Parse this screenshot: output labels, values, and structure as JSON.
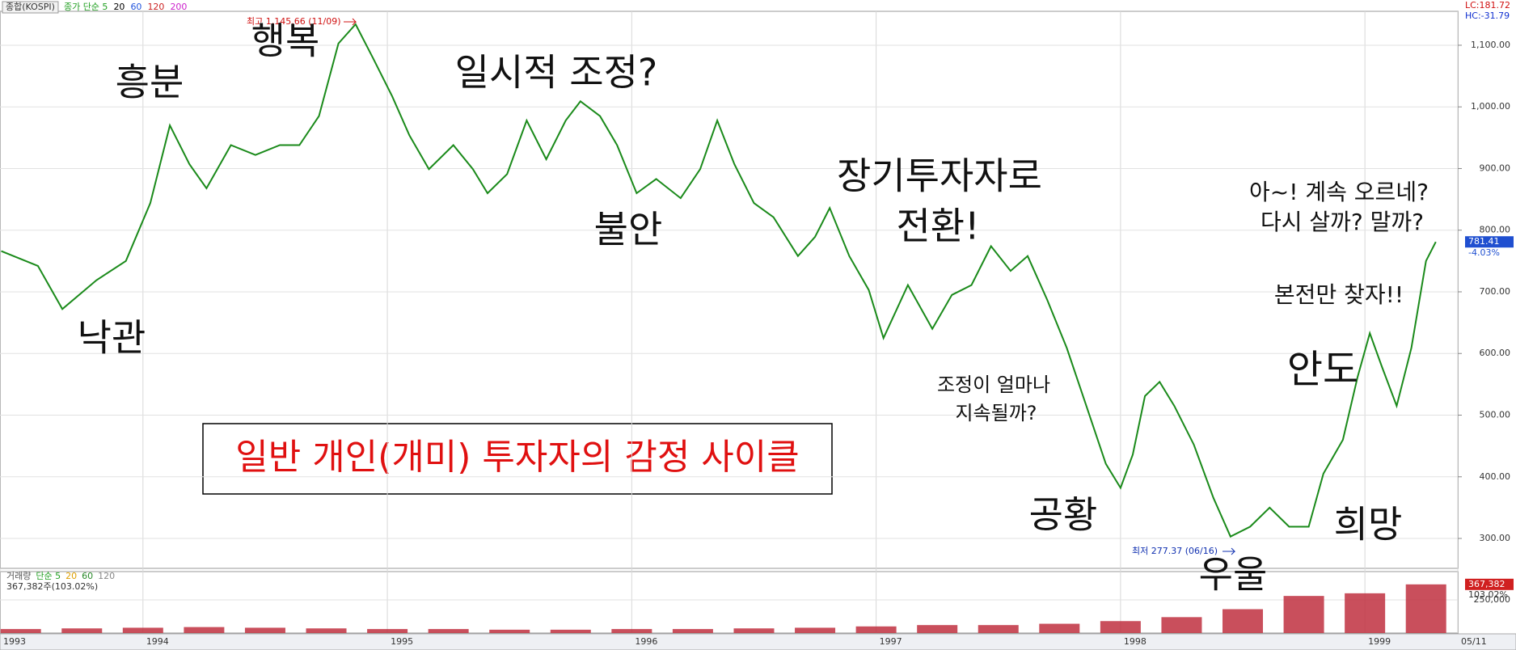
{
  "header": {
    "index": "종합(KOSPI)",
    "ma_labels": [
      {
        "text": "종가 단순 5",
        "color": "#22a022"
      },
      {
        "text": "20",
        "color": "#000000"
      },
      {
        "text": "60",
        "color": "#2255dd"
      },
      {
        "text": "120",
        "color": "#cc2222"
      },
      {
        "text": "200",
        "color": "#cc22cc"
      }
    ],
    "lc_label": "LC:181.72",
    "hc_label": "HC:-31.79"
  },
  "chart_data": [
    {
      "type": "line",
      "series": [
        {
          "color": "#1a8a1a",
          "x": [
            1993.42,
            1993.57,
            1993.67,
            1993.81,
            1993.93,
            1994.03,
            1994.11,
            1994.19,
            1994.26,
            1994.36,
            1994.46,
            1994.56,
            1994.64,
            1994.72,
            1994.8,
            1994.87,
            1994.94,
            1995.02,
            1995.09,
            1995.17,
            1995.27,
            1995.35,
            1995.41,
            1995.49,
            1995.57,
            1995.65,
            1995.73,
            1995.79,
            1995.87,
            1995.94,
            1996.02,
            1996.1,
            1996.2,
            1996.28,
            1996.35,
            1996.42,
            1996.5,
            1996.58,
            1996.68,
            1996.75,
            1996.81,
            1996.89,
            1996.97,
            1997.03,
            1997.13,
            1997.23,
            1997.31,
            1997.39,
            1997.47,
            1997.55,
            1997.62,
            1997.7,
            1997.78,
            1997.86,
            1997.94,
            1998.0,
            1998.05,
            1998.1,
            1998.16,
            1998.22,
            1998.3,
            1998.38,
            1998.45,
            1998.53,
            1998.61,
            1998.69,
            1998.77,
            1998.83,
            1998.91,
            1998.97,
            1999.02,
            1999.07,
            1999.13,
            1999.19,
            1999.25,
            1999.29
          ],
          "values": [
            766,
            742,
            672,
            719,
            750,
            844,
            970,
            907,
            868,
            938,
            922,
            938,
            938,
            985,
            1103,
            1134,
            1080,
            1017,
            954,
            899,
            938,
            899,
            860,
            891,
            978,
            915,
            978,
            1009,
            985,
            938,
            860,
            883,
            852,
            899,
            978,
            907,
            844,
            821,
            758,
            789,
            836,
            758,
            703,
            625,
            711,
            640,
            695,
            711,
            774,
            734,
            758,
            687,
            609,
            515,
            421,
            382,
            436,
            531,
            554,
            515,
            452,
            366,
            303,
            319,
            350,
            319,
            319,
            405,
            460,
            562,
            633,
            578,
            515,
            609,
            750,
            781
          ]
        }
      ],
      "xlim": [
        1993.415,
        1999.38
      ],
      "xticks": [
        {
          "value": 1993.415,
          "label": "1993"
        },
        1994,
        1995,
        1996,
        1997,
        1998,
        1999,
        {
          "value": 1999.38,
          "label": "05/11"
        }
      ],
      "ylim": [
        251.5,
        1155
      ],
      "yticks": [
        {
          "value": 300,
          "label": "300.00"
        },
        {
          "value": 400,
          "label": "400.00"
        },
        {
          "value": 500,
          "label": "500.00"
        },
        {
          "value": 600,
          "label": "600.00"
        },
        {
          "value": 700,
          "label": "700.00"
        },
        {
          "value": 800,
          "label": "800.00"
        },
        {
          "value": 900,
          "label": "900.00"
        },
        {
          "value": 1000,
          "label": "1,000.00"
        },
        {
          "value": 1100,
          "label": "1,100.00"
        }
      ],
      "grid": true,
      "high_label": "최고 1,145.66 (11/09)",
      "low_label": "최저 277.37 (06/16)",
      "last_label": "781.41",
      "last_change": "-4.03%"
    },
    {
      "type": "bar",
      "legend": [
        {
          "text": "거래량",
          "color": "#555555"
        },
        {
          "text": "단순 5",
          "color": "#22a022"
        },
        {
          "text": "20",
          "color": "#e0a000"
        },
        {
          "text": "60",
          "color": "#2a8a2a"
        },
        {
          "text": "120",
          "color": "#888888"
        }
      ],
      "note": "367,382주(103.02%)",
      "color": "#c03040",
      "x": [
        1993.5,
        1993.75,
        1994,
        1994.25,
        1994.5,
        1994.75,
        1995,
        1995.25,
        1995.5,
        1995.75,
        1996,
        1996.25,
        1996.5,
        1996.75,
        1997,
        1997.25,
        1997.5,
        1997.75,
        1998,
        1998.25,
        1998.5,
        1998.75,
        1999,
        1999.25
      ],
      "values": [
        30000,
        35000,
        40000,
        45000,
        40000,
        35000,
        30000,
        30000,
        25000,
        25000,
        30000,
        30000,
        35000,
        40000,
        50000,
        60000,
        60000,
        70000,
        90000,
        120000,
        180000,
        280000,
        300000,
        367382
      ],
      "xlim": [
        1993.415,
        1999.38
      ],
      "ylim": [
        0,
        464000
      ],
      "yticks": [
        {
          "value": 250000,
          "label": "250,000"
        }
      ],
      "last_label": "367,382",
      "last_change": "103.02%"
    }
  ],
  "annotations": [
    "흥분",
    "행복",
    "일시적 조정?",
    "낙관",
    "불안",
    "장기투자자로",
    "전환!",
    "아~! 계속 오르네?",
    "다시 살까? 말까?",
    "본전만 찾자!!",
    "안도",
    "조정이 얼마나",
    "지속될까?",
    "공황",
    "희망",
    "우울"
  ],
  "box_title": "일반 개인(개미) 투자자의 감정 사이클"
}
